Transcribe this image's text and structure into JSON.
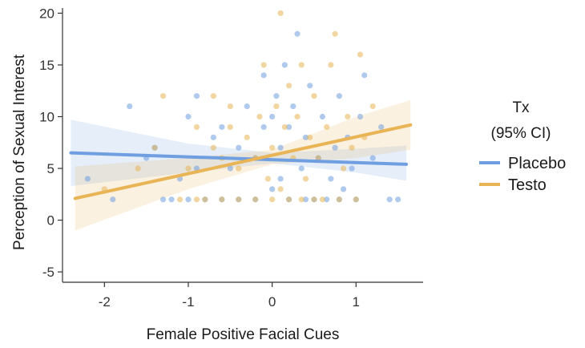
{
  "chart_data": {
    "type": "scatter",
    "xlabel": "Female Positive Facial Cues",
    "ylabel": "Perception of Sexual Interest",
    "xlim": [
      -2.5,
      1.8
    ],
    "ylim": [
      -6,
      20.5
    ],
    "x_ticks": [
      "-2",
      "-1",
      "0",
      "1"
    ],
    "y_ticks": [
      "-5",
      "0",
      "5",
      "10",
      "15",
      "20"
    ],
    "x_tick_values": [
      -2,
      -1,
      0,
      1
    ],
    "y_tick_values": [
      -5,
      0,
      5,
      10,
      15,
      20
    ],
    "grid": false,
    "legend": {
      "title_line1": "Tx",
      "title_line2": "(95% CI)",
      "placement": "right"
    },
    "series": [
      {
        "name": "Placebo",
        "color": "#6f9fe0",
        "fit": {
          "x": [
            -2.4,
            1.6
          ],
          "y": [
            6.5,
            5.4
          ]
        },
        "ci": {
          "x": [
            -2.4,
            -1.0,
            0.0,
            1.0,
            1.6
          ],
          "lower": [
            3.3,
            4.6,
            5.5,
            4.6,
            3.8
          ],
          "upper": [
            9.7,
            7.4,
            6.5,
            6.9,
            7.2
          ]
        },
        "points": [
          [
            -2.2,
            4
          ],
          [
            -1.9,
            2
          ],
          [
            -1.7,
            11
          ],
          [
            -1.5,
            6
          ],
          [
            -1.4,
            7
          ],
          [
            -1.3,
            2
          ],
          [
            -1.2,
            2
          ],
          [
            -1.1,
            4
          ],
          [
            -1.0,
            2
          ],
          [
            -1.0,
            10
          ],
          [
            -0.9,
            5
          ],
          [
            -0.9,
            12
          ],
          [
            -0.8,
            2
          ],
          [
            -0.7,
            8
          ],
          [
            -0.6,
            2
          ],
          [
            -0.6,
            9
          ],
          [
            -0.5,
            5
          ],
          [
            -0.4,
            2
          ],
          [
            -0.4,
            7
          ],
          [
            -0.3,
            11
          ],
          [
            -0.2,
            2
          ],
          [
            -0.2,
            6
          ],
          [
            -0.1,
            9
          ],
          [
            -0.1,
            14
          ],
          [
            0.0,
            3
          ],
          [
            0.0,
            10
          ],
          [
            0.05,
            12
          ],
          [
            0.1,
            4
          ],
          [
            0.1,
            7
          ],
          [
            0.15,
            15
          ],
          [
            0.2,
            2
          ],
          [
            0.2,
            9
          ],
          [
            0.25,
            11
          ],
          [
            0.3,
            18
          ],
          [
            0.35,
            5
          ],
          [
            0.4,
            2
          ],
          [
            0.4,
            8
          ],
          [
            0.45,
            13
          ],
          [
            0.5,
            2
          ],
          [
            0.55,
            6
          ],
          [
            0.6,
            10
          ],
          [
            0.65,
            2
          ],
          [
            0.7,
            4
          ],
          [
            0.75,
            7
          ],
          [
            0.8,
            12
          ],
          [
            0.8,
            2
          ],
          [
            0.85,
            3
          ],
          [
            0.9,
            8
          ],
          [
            0.95,
            5
          ],
          [
            1.0,
            2
          ],
          [
            1.05,
            10
          ],
          [
            1.1,
            14
          ],
          [
            1.2,
            6
          ],
          [
            1.3,
            9
          ],
          [
            1.4,
            2
          ],
          [
            1.5,
            2
          ]
        ]
      },
      {
        "name": "Testo",
        "color": "#e8b455",
        "fit": {
          "x": [
            -2.35,
            1.65
          ],
          "y": [
            2.1,
            9.2
          ]
        },
        "ci": {
          "x": [
            -2.35,
            -1.0,
            0.0,
            1.0,
            1.65
          ],
          "lower": [
            -1.0,
            3.0,
            5.4,
            6.0,
            6.8
          ],
          "upper": [
            5.2,
            6.0,
            6.8,
            10.0,
            11.6
          ]
        },
        "points": [
          [
            -2.0,
            3
          ],
          [
            -1.6,
            5
          ],
          [
            -1.4,
            7
          ],
          [
            -1.3,
            12
          ],
          [
            -1.1,
            2
          ],
          [
            -1.0,
            5
          ],
          [
            -0.9,
            2
          ],
          [
            -0.9,
            9
          ],
          [
            -0.8,
            2
          ],
          [
            -0.7,
            7
          ],
          [
            -0.7,
            12
          ],
          [
            -0.6,
            2
          ],
          [
            -0.6,
            6
          ],
          [
            -0.5,
            9
          ],
          [
            -0.5,
            11
          ],
          [
            -0.4,
            2
          ],
          [
            -0.4,
            5
          ],
          [
            -0.3,
            8
          ],
          [
            -0.2,
            2
          ],
          [
            -0.2,
            6
          ],
          [
            -0.15,
            10
          ],
          [
            -0.1,
            15
          ],
          [
            -0.05,
            4
          ],
          [
            0.0,
            2
          ],
          [
            0.0,
            7
          ],
          [
            0.05,
            11
          ],
          [
            0.1,
            20
          ],
          [
            0.1,
            3
          ],
          [
            0.15,
            9
          ],
          [
            0.2,
            13
          ],
          [
            0.2,
            2
          ],
          [
            0.25,
            6
          ],
          [
            0.3,
            10
          ],
          [
            0.35,
            2
          ],
          [
            0.35,
            15
          ],
          [
            0.4,
            4
          ],
          [
            0.45,
            8
          ],
          [
            0.5,
            2
          ],
          [
            0.5,
            12
          ],
          [
            0.55,
            6
          ],
          [
            0.6,
            2
          ],
          [
            0.65,
            9
          ],
          [
            0.7,
            15
          ],
          [
            0.75,
            18
          ],
          [
            0.8,
            2
          ],
          [
            0.85,
            5
          ],
          [
            0.9,
            10
          ],
          [
            0.95,
            7
          ],
          [
            1.0,
            2
          ],
          [
            1.05,
            16
          ],
          [
            1.1,
            8
          ],
          [
            1.2,
            11
          ]
        ]
      }
    ]
  }
}
